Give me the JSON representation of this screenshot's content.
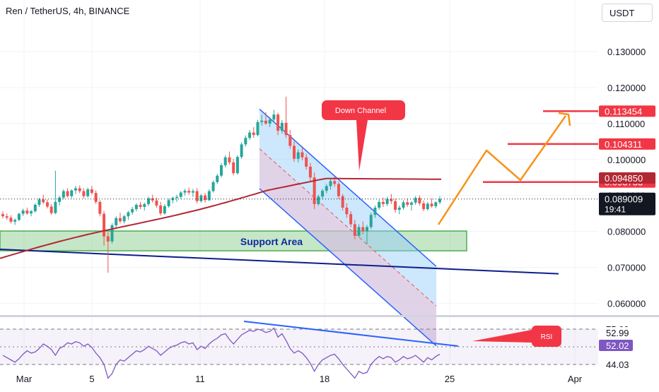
{
  "header": {
    "title": "Ren / TetherUS, 4h, BINANCE",
    "currency_button": "USDT"
  },
  "chart_data": [
    {
      "type": "candlestick",
      "symbol": "Ren / TetherUS",
      "interval": "4h",
      "exchange": "BINANCE",
      "x_ticks": [
        "Mar",
        "5",
        "11",
        "18",
        "25",
        "Apr"
      ],
      "y_ticks": [
        "0.130000",
        "0.120000",
        "0.110000",
        "0.100000",
        "0.090000",
        "0.080000",
        "0.070000",
        "0.060000"
      ],
      "ylim": [
        0.055,
        0.145
      ],
      "last_price": {
        "value": "0.089009",
        "countdown": "19:41",
        "color": "#131722"
      },
      "moving_average": {
        "value": "0.094850",
        "color": "#b22833"
      },
      "price_levels": [
        {
          "value": "0.113454",
          "color": "#f23645"
        },
        {
          "value": "0.104311",
          "color": "#f23645"
        },
        {
          "value": "0.093733",
          "color": "#f23645"
        }
      ],
      "annotations": {
        "down_channel": "Down Channel",
        "support_area": "Support Area"
      },
      "colors": {
        "up": "#26a69a",
        "down": "#ef5350",
        "channel": "#2962ff",
        "trend": "#0d1d8c",
        "support": "#81c784",
        "projection": "#f7931a"
      },
      "ohlc_series": [
        [
          0.0848,
          0.0856,
          0.0836,
          0.0842
        ],
        [
          0.0842,
          0.085,
          0.0832,
          0.0838
        ],
        [
          0.0838,
          0.0845,
          0.0822,
          0.0827
        ],
        [
          0.0827,
          0.0836,
          0.0818,
          0.0832
        ],
        [
          0.0832,
          0.0852,
          0.0828,
          0.0849
        ],
        [
          0.0849,
          0.0863,
          0.0843,
          0.0858
        ],
        [
          0.0858,
          0.0866,
          0.0846,
          0.085
        ],
        [
          0.085,
          0.086,
          0.0842,
          0.0856
        ],
        [
          0.0856,
          0.0878,
          0.0852,
          0.0874
        ],
        [
          0.0874,
          0.0893,
          0.0868,
          0.0889
        ],
        [
          0.0889,
          0.0902,
          0.0876,
          0.0881
        ],
        [
          0.0881,
          0.0889,
          0.0864,
          0.0869
        ],
        [
          0.0869,
          0.0876,
          0.0846,
          0.0851
        ],
        [
          0.0851,
          0.0969,
          0.0848,
          0.0882
        ],
        [
          0.0882,
          0.0899,
          0.0872,
          0.0894
        ],
        [
          0.0894,
          0.0917,
          0.0889,
          0.0912
        ],
        [
          0.0912,
          0.092,
          0.0894,
          0.0898
        ],
        [
          0.0898,
          0.0917,
          0.0892,
          0.0914
        ],
        [
          0.0914,
          0.0927,
          0.0904,
          0.092
        ],
        [
          0.092,
          0.0928,
          0.0906,
          0.0912
        ],
        [
          0.0912,
          0.092,
          0.0892,
          0.0898
        ],
        [
          0.0898,
          0.0922,
          0.0894,
          0.0917
        ],
        [
          0.0917,
          0.0927,
          0.0902,
          0.0907
        ],
        [
          0.0907,
          0.0914,
          0.0876,
          0.0882
        ],
        [
          0.0882,
          0.0887,
          0.0842,
          0.0849
        ],
        [
          0.0849,
          0.0857,
          0.076,
          0.0786
        ],
        [
          0.0786,
          0.0798,
          0.0685,
          0.0772
        ],
        [
          0.0772,
          0.0822,
          0.0766,
          0.0817
        ],
        [
          0.0817,
          0.0842,
          0.0808,
          0.0837
        ],
        [
          0.0837,
          0.0852,
          0.0822,
          0.0828
        ],
        [
          0.0828,
          0.0846,
          0.0822,
          0.0842
        ],
        [
          0.0842,
          0.0857,
          0.0832,
          0.0853
        ],
        [
          0.0853,
          0.0868,
          0.0846,
          0.0862
        ],
        [
          0.0862,
          0.0878,
          0.0856,
          0.0874
        ],
        [
          0.0874,
          0.0882,
          0.0862,
          0.0868
        ],
        [
          0.0868,
          0.088,
          0.0858,
          0.0876
        ],
        [
          0.0876,
          0.0897,
          0.087,
          0.0892
        ],
        [
          0.0892,
          0.0902,
          0.088,
          0.0886
        ],
        [
          0.0886,
          0.0894,
          0.0866,
          0.0872
        ],
        [
          0.0872,
          0.0882,
          0.0844,
          0.085
        ],
        [
          0.085,
          0.0876,
          0.0846,
          0.087
        ],
        [
          0.087,
          0.0892,
          0.0866,
          0.0887
        ],
        [
          0.0887,
          0.0897,
          0.0878,
          0.0893
        ],
        [
          0.0893,
          0.0902,
          0.0882,
          0.0896
        ],
        [
          0.0896,
          0.0912,
          0.089,
          0.0908
        ],
        [
          0.0908,
          0.0918,
          0.09,
          0.0913
        ],
        [
          0.0913,
          0.0922,
          0.0902,
          0.0908
        ],
        [
          0.0908,
          0.0918,
          0.0896,
          0.0912
        ],
        [
          0.0912,
          0.092,
          0.0878,
          0.0884
        ],
        [
          0.0884,
          0.0904,
          0.088,
          0.09
        ],
        [
          0.09,
          0.0907,
          0.088,
          0.0887
        ],
        [
          0.0887,
          0.0917,
          0.0884,
          0.0912
        ],
        [
          0.0912,
          0.0942,
          0.0908,
          0.0937
        ],
        [
          0.0937,
          0.096,
          0.0932,
          0.0955
        ],
        [
          0.0955,
          0.099,
          0.095,
          0.0984
        ],
        [
          0.0984,
          0.1012,
          0.0978,
          0.1006
        ],
        [
          0.1006,
          0.1022,
          0.0986,
          0.0992
        ],
        [
          0.0992,
          0.1002,
          0.0956,
          0.0962
        ],
        [
          0.0962,
          0.1012,
          0.0958,
          0.1007
        ],
        [
          0.1007,
          0.1048,
          0.1002,
          0.1042
        ],
        [
          0.1042,
          0.1067,
          0.1036,
          0.106
        ],
        [
          0.106,
          0.1082,
          0.1054,
          0.1075
        ],
        [
          0.1075,
          0.109,
          0.106,
          0.1068
        ],
        [
          0.1068,
          0.111,
          0.1064,
          0.1104
        ],
        [
          0.1104,
          0.1125,
          0.1094,
          0.1108
        ],
        [
          0.1108,
          0.1132,
          0.1096,
          0.11
        ],
        [
          0.11,
          0.1118,
          0.109,
          0.1111
        ],
        [
          0.1111,
          0.1138,
          0.1104,
          0.1125
        ],
        [
          0.1125,
          0.113,
          0.1068,
          0.108
        ],
        [
          0.108,
          0.111,
          0.1072,
          0.1102
        ],
        [
          0.1102,
          0.1175,
          0.106,
          0.1068
        ],
        [
          0.1068,
          0.1082,
          0.103,
          0.1038
        ],
        [
          0.1038,
          0.105,
          0.0994,
          0.1002
        ],
        [
          0.1002,
          0.1028,
          0.0992,
          0.102
        ],
        [
          0.102,
          0.1034,
          0.0998,
          0.1006
        ],
        [
          0.1006,
          0.1016,
          0.0972,
          0.098
        ],
        [
          0.098,
          0.099,
          0.094,
          0.095
        ],
        [
          0.095,
          0.0964,
          0.0862,
          0.0876
        ],
        [
          0.0876,
          0.0902,
          0.0872,
          0.0897
        ],
        [
          0.0897,
          0.0918,
          0.089,
          0.0913
        ],
        [
          0.0913,
          0.0932,
          0.0906,
          0.0926
        ],
        [
          0.0926,
          0.0946,
          0.0916,
          0.094
        ],
        [
          0.094,
          0.0952,
          0.0924,
          0.0932
        ],
        [
          0.0932,
          0.0938,
          0.089,
          0.0898
        ],
        [
          0.0898,
          0.0904,
          0.0858,
          0.0866
        ],
        [
          0.0866,
          0.0878,
          0.0838,
          0.0848
        ],
        [
          0.0848,
          0.0856,
          0.0812,
          0.082
        ],
        [
          0.082,
          0.0832,
          0.0778,
          0.0788
        ],
        [
          0.0788,
          0.082,
          0.0784,
          0.0812
        ],
        [
          0.0812,
          0.0828,
          0.0792,
          0.08
        ],
        [
          0.08,
          0.0818,
          0.0764,
          0.0812
        ],
        [
          0.0812,
          0.0852,
          0.0806,
          0.0846
        ],
        [
          0.0846,
          0.0872,
          0.0838,
          0.0866
        ],
        [
          0.0866,
          0.0888,
          0.086,
          0.0882
        ],
        [
          0.0882,
          0.0894,
          0.0868,
          0.0876
        ],
        [
          0.0876,
          0.0896,
          0.087,
          0.089
        ],
        [
          0.089,
          0.0904,
          0.0876,
          0.0884
        ],
        [
          0.0884,
          0.0892,
          0.0852,
          0.086
        ],
        [
          0.086,
          0.0872,
          0.0848,
          0.0866
        ],
        [
          0.0866,
          0.0887,
          0.086,
          0.0881
        ],
        [
          0.0881,
          0.0892,
          0.0868,
          0.0874
        ],
        [
          0.0874,
          0.0884,
          0.0858,
          0.088
        ],
        [
          0.088,
          0.0898,
          0.0874,
          0.0893
        ],
        [
          0.0893,
          0.09,
          0.0872,
          0.0878
        ],
        [
          0.0878,
          0.0886,
          0.0856,
          0.0862
        ],
        [
          0.0862,
          0.0882,
          0.0858,
          0.0877
        ],
        [
          0.0877,
          0.0892,
          0.0866,
          0.087
        ],
        [
          0.087,
          0.0884,
          0.0864,
          0.0881
        ],
        [
          0.0881,
          0.0898,
          0.0876,
          0.089
        ]
      ]
    },
    {
      "type": "line",
      "name": "RSI",
      "label": "RSI",
      "y_ticks": [
        "75.00",
        "44.03"
      ],
      "ylim": [
        20,
        85
      ],
      "markers": [
        {
          "value": "52.99",
          "color": "#ffffff",
          "text_color": "#131722"
        },
        {
          "value": "52.02",
          "color": "#7e57c2",
          "text_color": "#ffffff"
        }
      ],
      "values": [
        52,
        50,
        48,
        46,
        49,
        53,
        56,
        54,
        55,
        58,
        62,
        60,
        57,
        52,
        58,
        60,
        63,
        62,
        64,
        63,
        60,
        62,
        59,
        54,
        50,
        44,
        32,
        36,
        44,
        48,
        47,
        50,
        53,
        56,
        55,
        57,
        60,
        58,
        56,
        52,
        55,
        58,
        60,
        61,
        63,
        64,
        62,
        63,
        57,
        60,
        58,
        62,
        65,
        67,
        70,
        71,
        66,
        62,
        66,
        70,
        72,
        74,
        73,
        75,
        74,
        72,
        73,
        76,
        68,
        71,
        65,
        58,
        54,
        56,
        54,
        50,
        45,
        38,
        44,
        48,
        50,
        52,
        53,
        49,
        44,
        40,
        36,
        32,
        38,
        36,
        37,
        44,
        48,
        51,
        49,
        51,
        50,
        46,
        48,
        51,
        49,
        50,
        52,
        49,
        46,
        50,
        48,
        51,
        53
      ]
    }
  ]
}
